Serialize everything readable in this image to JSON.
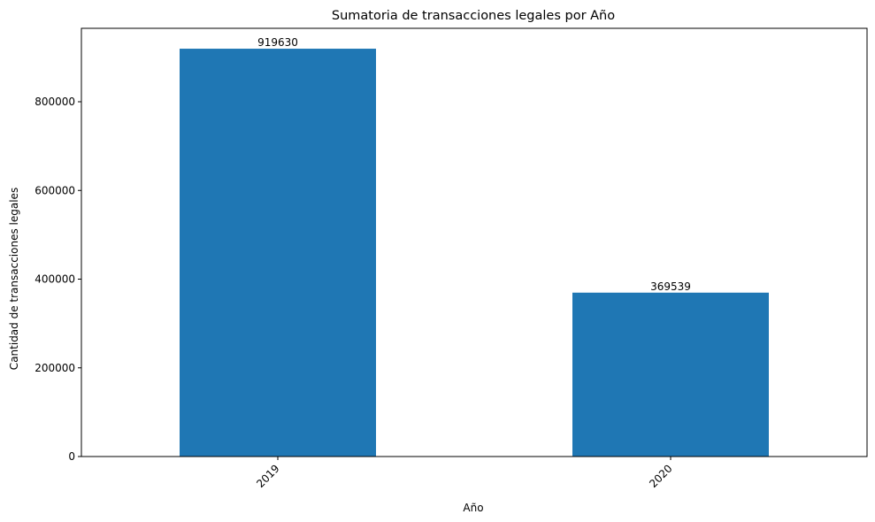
{
  "chart_data": {
    "type": "bar",
    "title": "Sumatoria de transacciones legales por Año",
    "xlabel": "Año",
    "ylabel": "Cantidad de transacciones legales",
    "categories": [
      "2019",
      "2020"
    ],
    "values": [
      919630,
      369539
    ],
    "data_labels": [
      "919630",
      "369539"
    ],
    "ylim": [
      0,
      965611
    ],
    "yticks": [
      0,
      200000,
      400000,
      600000,
      800000
    ],
    "ytick_labels": [
      "0",
      "200000",
      "400000",
      "600000",
      "800000"
    ],
    "xtick_rotation_deg": 45,
    "bar_color": "#1f77b4",
    "grid": false,
    "legend": "none"
  }
}
